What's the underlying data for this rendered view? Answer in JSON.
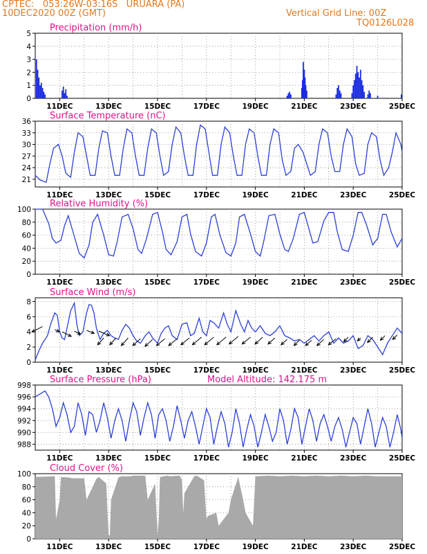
{
  "header": {
    "line1": "CPTEC:   053:26W-03:16S   URUARA (PA)",
    "line2": "10DEC2020 00Z (GMT)",
    "right1": "Vertical Grid Line: 00Z",
    "right2": "TQ0126L028"
  },
  "colors": {
    "header": "#e0781e",
    "title": "#e0108a",
    "line": "#2b3fd6",
    "bar": "#1a2be0",
    "cloud": "#a9a9a9",
    "grid": "#888888"
  },
  "x_ticks": [
    "11DEC",
    "13DEC",
    "15DEC",
    "17DEC",
    "19DEC",
    "21DEC",
    "23DEC",
    "25DEC"
  ],
  "chart_data": [
    {
      "type": "bar",
      "title": "Precipitation (mm/h)",
      "ylim": [
        0,
        5
      ],
      "yticks": [
        "0",
        "1",
        "2",
        "3",
        "4",
        "5"
      ],
      "x_range_days": [
        10,
        25
      ],
      "bars": [
        [
          10.05,
          3.0
        ],
        [
          10.1,
          2.2
        ],
        [
          10.15,
          1.6
        ],
        [
          10.2,
          1.0
        ],
        [
          10.25,
          1.2
        ],
        [
          10.3,
          0.8
        ],
        [
          10.35,
          0.5
        ],
        [
          10.4,
          0.3
        ],
        [
          11.1,
          0.6
        ],
        [
          11.15,
          0.9
        ],
        [
          11.2,
          0.4
        ],
        [
          11.25,
          0.7
        ],
        [
          11.3,
          0.2
        ],
        [
          20.3,
          0.2
        ],
        [
          20.35,
          0.4
        ],
        [
          20.4,
          0.5
        ],
        [
          20.45,
          0.3
        ],
        [
          20.9,
          0.8
        ],
        [
          20.93,
          1.4
        ],
        [
          20.96,
          2.8
        ],
        [
          21.0,
          2.2
        ],
        [
          21.03,
          1.6
        ],
        [
          21.06,
          1.0
        ],
        [
          21.1,
          0.6
        ],
        [
          22.3,
          0.3
        ],
        [
          22.35,
          0.8
        ],
        [
          22.4,
          1.0
        ],
        [
          22.45,
          0.6
        ],
        [
          22.5,
          0.4
        ],
        [
          22.95,
          0.4
        ],
        [
          23.0,
          1.0
        ],
        [
          23.05,
          1.4
        ],
        [
          23.1,
          1.9
        ],
        [
          23.15,
          2.5
        ],
        [
          23.2,
          2.0
        ],
        [
          23.25,
          1.6
        ],
        [
          23.3,
          2.2
        ],
        [
          23.35,
          1.4
        ],
        [
          23.4,
          1.0
        ],
        [
          23.45,
          0.5
        ],
        [
          23.6,
          0.3
        ],
        [
          23.65,
          0.6
        ],
        [
          23.7,
          0.4
        ],
        [
          24.0,
          0.2
        ],
        [
          24.97,
          0.3
        ]
      ]
    },
    {
      "type": "line",
      "title": "Surface Temperature (nC)",
      "ylim": [
        19,
        36
      ],
      "yticks": [
        "21",
        "24",
        "27",
        "30",
        "33",
        "36"
      ],
      "x": [
        10.0,
        10.2,
        10.45,
        10.6,
        10.75,
        10.95,
        11.1,
        11.25,
        11.45,
        11.6,
        11.75,
        11.95,
        12.1,
        12.25,
        12.45,
        12.6,
        12.75,
        12.95,
        13.1,
        13.25,
        13.45,
        13.6,
        13.75,
        13.95,
        14.1,
        14.25,
        14.45,
        14.6,
        14.75,
        14.95,
        15.1,
        15.25,
        15.45,
        15.6,
        15.75,
        15.95,
        16.1,
        16.25,
        16.45,
        16.6,
        16.75,
        16.95,
        17.1,
        17.25,
        17.45,
        17.6,
        17.75,
        17.95,
        18.1,
        18.25,
        18.45,
        18.6,
        18.75,
        18.95,
        19.1,
        19.25,
        19.45,
        19.6,
        19.75,
        19.95,
        20.1,
        20.25,
        20.45,
        20.6,
        20.75,
        20.95,
        21.1,
        21.25,
        21.45,
        21.6,
        21.75,
        21.95,
        22.1,
        22.25,
        22.45,
        22.6,
        22.75,
        22.95,
        23.1,
        23.25,
        23.45,
        23.6,
        23.75,
        23.95,
        24.1,
        24.25,
        24.45,
        24.6,
        24.75,
        24.95,
        25.0
      ],
      "y": [
        22,
        20.8,
        20.2,
        25,
        29,
        30,
        27,
        22.5,
        21.5,
        28,
        33,
        32,
        27,
        22,
        22,
        29,
        33.5,
        33,
        27,
        22,
        22,
        29,
        34,
        33,
        27,
        22,
        22,
        29,
        34,
        33,
        27,
        22,
        23,
        30,
        34.5,
        33,
        27,
        22,
        22,
        30,
        35,
        34,
        28,
        22,
        22,
        30,
        34.5,
        33,
        27,
        22,
        22,
        30,
        34,
        33,
        27,
        22,
        22,
        30,
        34,
        33,
        26,
        22,
        23,
        29,
        30,
        28,
        25,
        22,
        23,
        30,
        34,
        33,
        27,
        23,
        23,
        30,
        34,
        32,
        25,
        22,
        22.5,
        30,
        33,
        32,
        26,
        22,
        24,
        28,
        33,
        30,
        28
      ]
    },
    {
      "type": "line",
      "title": "Relative Humidity (%)",
      "ylim": [
        0,
        100
      ],
      "yticks": [
        "0",
        "20",
        "40",
        "60",
        "80",
        "100"
      ],
      "x": [
        10.0,
        10.3,
        10.55,
        10.7,
        10.85,
        11.05,
        11.2,
        11.35,
        11.6,
        11.8,
        12.0,
        12.2,
        12.35,
        12.55,
        12.8,
        13.0,
        13.2,
        13.35,
        13.55,
        13.8,
        14.0,
        14.2,
        14.35,
        14.55,
        14.8,
        15.0,
        15.2,
        15.35,
        15.55,
        15.8,
        16.0,
        16.2,
        16.35,
        16.55,
        16.8,
        17.0,
        17.2,
        17.35,
        17.55,
        17.8,
        18.0,
        18.2,
        18.35,
        18.55,
        18.8,
        19.0,
        19.2,
        19.35,
        19.55,
        19.8,
        20.0,
        20.2,
        20.35,
        20.55,
        20.8,
        21.0,
        21.2,
        21.35,
        21.55,
        21.8,
        22.0,
        22.2,
        22.35,
        22.55,
        22.8,
        23.0,
        23.2,
        23.35,
        23.55,
        23.8,
        24.0,
        24.2,
        24.35,
        24.55,
        24.8,
        25.0
      ],
      "y": [
        100,
        100,
        78,
        55,
        48,
        52,
        75,
        90,
        58,
        32,
        25,
        45,
        80,
        92,
        60,
        30,
        28,
        50,
        88,
        92,
        70,
        38,
        32,
        55,
        92,
        95,
        65,
        38,
        30,
        50,
        88,
        92,
        62,
        35,
        28,
        48,
        88,
        92,
        60,
        33,
        28,
        48,
        88,
        92,
        62,
        35,
        28,
        52,
        90,
        92,
        62,
        38,
        35,
        55,
        92,
        95,
        68,
        48,
        50,
        82,
        95,
        95,
        65,
        38,
        35,
        60,
        95,
        95,
        75,
        45,
        55,
        92,
        92,
        65,
        42,
        55
      ]
    },
    {
      "type": "line",
      "title": "Surface Wind (m/s)",
      "ylim": [
        0,
        8.5
      ],
      "yticks": [
        "0",
        "2",
        "4",
        "6",
        "8"
      ],
      "x": [
        10.0,
        10.15,
        10.3,
        10.5,
        10.65,
        10.8,
        10.9,
        11.0,
        11.1,
        11.2,
        11.3,
        11.45,
        11.6,
        11.7,
        11.8,
        11.95,
        12.1,
        12.2,
        12.3,
        12.4,
        12.5,
        12.65,
        12.8,
        12.95,
        13.1,
        13.25,
        13.4,
        13.55,
        13.7,
        13.85,
        14.0,
        14.15,
        14.3,
        14.5,
        14.65,
        14.8,
        15.0,
        15.15,
        15.3,
        15.45,
        15.6,
        15.8,
        16.0,
        16.2,
        16.35,
        16.5,
        16.7,
        16.85,
        17.0,
        17.15,
        17.3,
        17.5,
        17.7,
        17.85,
        18.0,
        18.2,
        18.4,
        18.55,
        18.7,
        18.85,
        19.0,
        19.2,
        19.4,
        19.6,
        19.8,
        20.0,
        20.2,
        20.4,
        20.6,
        20.8,
        21.0,
        21.2,
        21.4,
        21.6,
        21.8,
        22.0,
        22.2,
        22.4,
        22.6,
        22.8,
        23.0,
        23.2,
        23.4,
        23.6,
        23.8,
        24.0,
        24.2,
        24.4,
        24.6,
        24.8,
        25.0
      ],
      "y": [
        0.3,
        1.5,
        2.5,
        3.5,
        5.2,
        6.5,
        6.2,
        4.0,
        3.2,
        3.0,
        4.5,
        6.8,
        7.8,
        5.0,
        3.5,
        4.0,
        6.5,
        7.6,
        7.5,
        6.5,
        4.5,
        3.0,
        3.8,
        4.2,
        3.5,
        3.2,
        3.0,
        4.2,
        5.0,
        4.5,
        3.5,
        2.8,
        2.5,
        3.5,
        4.0,
        3.2,
        2.5,
        3.8,
        4.5,
        4.8,
        3.5,
        3.0,
        5.0,
        5.2,
        3.5,
        3.8,
        5.8,
        4.0,
        3.5,
        5.5,
        5.2,
        4.5,
        6.5,
        5.0,
        4.0,
        6.8,
        5.0,
        4.0,
        5.5,
        4.5,
        4.0,
        4.8,
        3.8,
        3.5,
        4.0,
        4.8,
        3.5,
        3.2,
        2.8,
        3.0,
        2.5,
        3.0,
        3.5,
        2.8,
        3.5,
        4.0,
        2.5,
        3.2,
        2.5,
        2.8,
        3.5,
        1.8,
        2.2,
        3.5,
        3.0,
        2.0,
        1.0,
        2.5,
        3.5,
        4.5,
        3.8
      ],
      "arrows": [
        [
          10.3,
          4.7,
          -0.7,
          -0.35
        ],
        [
          10.8,
          4.3,
          0.3,
          -0.15
        ],
        [
          11.1,
          4.0,
          0.6,
          -0.3
        ],
        [
          11.6,
          4.1,
          0.4,
          -0.2
        ],
        [
          12.1,
          4.2,
          0.5,
          -0.2
        ],
        [
          12.6,
          4.1,
          0.7,
          -0.3
        ],
        [
          12.8,
          3.2,
          -0.4,
          -0.45
        ],
        [
          13.3,
          3.2,
          -0.4,
          -0.45
        ],
        [
          13.8,
          3.2,
          -0.45,
          -0.5
        ],
        [
          14.3,
          3.1,
          -0.5,
          -0.45
        ],
        [
          14.8,
          3.0,
          -0.5,
          -0.45
        ],
        [
          15.3,
          3.1,
          -0.55,
          -0.45
        ],
        [
          15.8,
          3.1,
          -0.55,
          -0.45
        ],
        [
          16.3,
          3.2,
          -0.55,
          -0.45
        ],
        [
          16.8,
          3.3,
          -0.6,
          -0.5
        ],
        [
          17.3,
          3.3,
          -0.6,
          -0.5
        ],
        [
          17.8,
          3.3,
          -0.6,
          -0.5
        ],
        [
          18.3,
          3.4,
          -0.6,
          -0.5
        ],
        [
          18.8,
          3.3,
          -0.55,
          -0.45
        ],
        [
          19.3,
          3.3,
          -0.5,
          -0.45
        ],
        [
          19.8,
          3.2,
          -0.45,
          -0.4
        ],
        [
          20.3,
          3.0,
          -0.4,
          -0.35
        ],
        [
          20.8,
          2.9,
          -0.35,
          -0.35
        ],
        [
          21.3,
          2.9,
          -0.4,
          -0.35
        ],
        [
          21.8,
          3.0,
          -0.45,
          -0.4
        ],
        [
          22.3,
          3.1,
          -0.5,
          -0.4
        ],
        [
          22.8,
          3.3,
          -0.3,
          -0.3
        ],
        [
          23.3,
          3.2,
          -0.2,
          -0.2
        ],
        [
          23.8,
          3.3,
          -0.35,
          -0.35
        ],
        [
          24.3,
          3.5,
          -0.3,
          -0.3
        ],
        [
          24.8,
          3.6,
          -0.3,
          -0.3
        ]
      ]
    },
    {
      "type": "line",
      "title": "Surface Pressure (hPa)",
      "annotation": "Model Altitude: 142.175 m",
      "ylim": [
        987,
        998
      ],
      "yticks": [
        "988",
        "990",
        "992",
        "994",
        "996",
        "998"
      ],
      "x": [
        10.0,
        10.2,
        10.4,
        10.55,
        10.7,
        10.85,
        11.0,
        11.15,
        11.3,
        11.45,
        11.6,
        11.75,
        11.9,
        12.05,
        12.2,
        12.35,
        12.5,
        12.65,
        12.8,
        12.95,
        13.1,
        13.25,
        13.4,
        13.55,
        13.7,
        13.85,
        14.0,
        14.15,
        14.3,
        14.45,
        14.6,
        14.75,
        14.9,
        15.05,
        15.2,
        15.35,
        15.5,
        15.65,
        15.8,
        15.95,
        16.1,
        16.25,
        16.4,
        16.55,
        16.7,
        16.85,
        17.0,
        17.15,
        17.3,
        17.45,
        17.6,
        17.75,
        17.9,
        18.05,
        18.2,
        18.35,
        18.5,
        18.65,
        18.8,
        18.95,
        19.1,
        19.25,
        19.4,
        19.55,
        19.7,
        19.85,
        20.0,
        20.15,
        20.3,
        20.45,
        20.6,
        20.75,
        20.9,
        21.05,
        21.2,
        21.35,
        21.5,
        21.65,
        21.8,
        21.95,
        22.1,
        22.25,
        22.4,
        22.55,
        22.7,
        22.85,
        23.0,
        23.15,
        23.3,
        23.45,
        23.6,
        23.75,
        23.9,
        24.05,
        24.2,
        24.35,
        24.5,
        24.65,
        24.8,
        24.95,
        25.0
      ],
      "y": [
        996,
        996.5,
        997,
        996,
        994,
        991,
        992.5,
        995,
        993,
        990,
        991,
        995,
        993,
        989.5,
        993.5,
        993,
        990,
        992,
        995,
        992.5,
        989,
        992,
        994,
        992,
        988.5,
        992,
        995,
        993.5,
        989.5,
        992.5,
        995,
        993,
        989,
        993,
        994,
        992,
        988.5,
        991,
        994.5,
        992,
        989,
        992,
        993.5,
        991,
        988,
        991,
        994,
        992.5,
        988,
        991,
        993.5,
        991.5,
        987.5,
        990,
        994,
        991.5,
        987.5,
        990.5,
        993,
        991,
        987.5,
        990,
        993,
        991,
        988.5,
        990,
        994,
        992,
        988,
        990.5,
        994,
        992.5,
        988,
        991,
        994,
        992,
        988.5,
        991.5,
        993,
        991,
        988.5,
        991,
        992.5,
        990.5,
        987.5,
        990,
        992.5,
        991.5,
        988,
        991,
        994,
        991.5,
        987.5,
        990,
        992.5,
        991,
        987.5,
        990,
        993,
        990.5,
        989
      ]
    },
    {
      "type": "area",
      "title": "Cloud Cover (%)",
      "ylim": [
        0,
        100
      ],
      "yticks": [
        "0",
        "20",
        "40",
        "60",
        "80",
        "100"
      ],
      "x": [
        10.0,
        10.8,
        10.85,
        11.0,
        11.05,
        11.4,
        11.5,
        12.0,
        12.1,
        12.5,
        12.6,
        12.9,
        13.0,
        13.05,
        13.1,
        13.4,
        13.5,
        13.9,
        14.0,
        14.5,
        14.6,
        14.9,
        15.0,
        15.05,
        15.1,
        15.4,
        15.5,
        15.9,
        16.0,
        16.05,
        16.1,
        16.5,
        16.6,
        16.9,
        17.0,
        17.05,
        17.4,
        17.5,
        17.9,
        18.0,
        18.3,
        18.5,
        18.6,
        18.9,
        19.0,
        19.5,
        20.0,
        20.5,
        21.0,
        21.5,
        22.0,
        22.5,
        23.0,
        23.5,
        24.0,
        24.5,
        25.0
      ],
      "y": [
        95,
        96,
        30,
        60,
        95,
        94,
        93,
        93,
        60,
        92,
        95,
        85,
        5,
        5,
        60,
        94,
        96,
        96,
        97,
        97,
        60,
        85,
        5,
        30,
        95,
        97,
        96,
        97,
        90,
        40,
        70,
        96,
        97,
        90,
        30,
        35,
        40,
        20,
        40,
        60,
        95,
        60,
        40,
        20,
        96,
        97,
        96,
        97,
        96,
        97,
        96,
        97,
        96,
        97,
        96,
        96,
        96
      ]
    }
  ]
}
